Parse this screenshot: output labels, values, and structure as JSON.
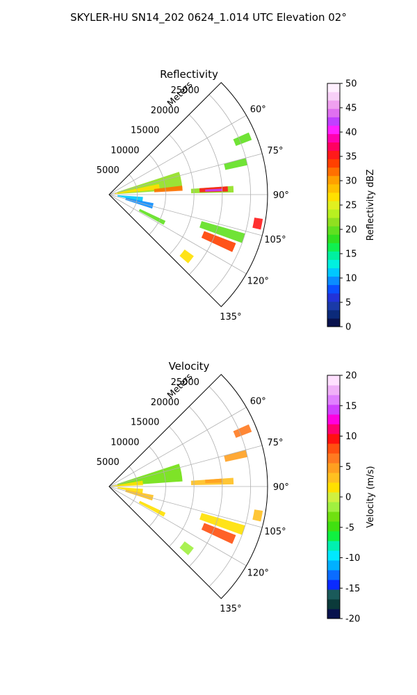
{
  "figure_title": "SKYLER-HU  SN14_202  0624_1.014 UTC Elevation 02°",
  "colors": {
    "grid": "#b0b0b0",
    "axis": "#000000",
    "reflectivity_colormap": [
      "#08124d",
      "#0b2a7a",
      "#1a3aa8",
      "#2233d8",
      "#0a4fff",
      "#0a8cff",
      "#00c8ff",
      "#00f0e0",
      "#00f0a0",
      "#10f050",
      "#30e020",
      "#60e020",
      "#90e020",
      "#b8f020",
      "#e0f020",
      "#ffe000",
      "#ffc000",
      "#ffa000",
      "#ff7000",
      "#ff4000",
      "#ff1a1a",
      "#ff0060",
      "#ff00b0",
      "#ff20ff",
      "#c040ff",
      "#e070f0",
      "#f0a0f0",
      "#f8d0f8",
      "#fff0ff"
    ],
    "velocity_colormap": [
      "#08124d",
      "#0b3a3a",
      "#1a5a5a",
      "#0a2aff",
      "#0a6cff",
      "#00b0ff",
      "#00e8ff",
      "#00f0b0",
      "#10f040",
      "#40e010",
      "#70e010",
      "#a0f040",
      "#d0f040",
      "#ffe000",
      "#ffc020",
      "#ffa020",
      "#ff7a20",
      "#ff5010",
      "#ff1010",
      "#ff0070",
      "#ff00e0",
      "#d040ff",
      "#e080ff",
      "#f0b0f8",
      "#ffe0ff"
    ]
  },
  "chart_data": [
    {
      "type": "ppi_sector",
      "title": "Reflectivity",
      "range_label": "Meters",
      "range_ticks": [
        5000,
        10000,
        15000,
        20000,
        25000
      ],
      "range_tick_labels": [
        "5000",
        "10000",
        "15000",
        "20000",
        "25000"
      ],
      "rmax": 28000,
      "azimuth_range_deg": [
        45,
        135
      ],
      "azimuth_tick_labels": [
        "60°",
        "75°",
        "90°",
        "105°",
        "120°",
        "135°"
      ],
      "azimuth_ticks_deg": [
        60,
        75,
        90,
        105,
        120,
        135
      ],
      "colorbar": {
        "label": "Reflectivity dBZ",
        "min": 0,
        "max": 50,
        "ticks": [
          0,
          5,
          10,
          15,
          20,
          25,
          30,
          35,
          40,
          45,
          50
        ]
      },
      "echoes": [
        {
          "az": [
            72,
            86
          ],
          "r": [
            1500,
            13000
          ],
          "value": 22
        },
        {
          "az": [
            78,
            84
          ],
          "r": [
            1000,
            9000
          ],
          "value": 27
        },
        {
          "az": [
            83,
            87
          ],
          "r": [
            8000,
            13000
          ],
          "value": 32
        },
        {
          "az": [
            86,
            89
          ],
          "r": [
            14500,
            22000
          ],
          "value": 22
        },
        {
          "az": [
            86,
            88.5
          ],
          "r": [
            16000,
            21000
          ],
          "value": 36
        },
        {
          "az": [
            87,
            88.2
          ],
          "r": [
            17000,
            20000
          ],
          "value": 43
        },
        {
          "az": [
            75,
            78
          ],
          "r": [
            21000,
            25000
          ],
          "value": 20
        },
        {
          "az": [
            66,
            69
          ],
          "r": [
            24000,
            27000
          ],
          "value": 20
        },
        {
          "az": [
            94,
            102
          ],
          "r": [
            1500,
            6000
          ],
          "value": 11
        },
        {
          "az": [
            101,
            108
          ],
          "r": [
            3000,
            8000
          ],
          "value": 10
        },
        {
          "az": [
            115,
            119
          ],
          "r": [
            6000,
            11000
          ],
          "value": 20
        },
        {
          "az": [
            106,
            110
          ],
          "r": [
            17000,
            25000
          ],
          "value": 20
        },
        {
          "az": [
            111,
            115
          ],
          "r": [
            18000,
            24000
          ],
          "value": 34
        },
        {
          "az": [
            99,
            103
          ],
          "r": [
            26000,
            27500
          ],
          "value": 35
        },
        {
          "az": [
            126,
            131
          ],
          "r": [
            16500,
            18500
          ],
          "value": 27
        }
      ]
    },
    {
      "type": "ppi_sector",
      "title": "Velocity",
      "range_label": "Meters",
      "range_ticks": [
        5000,
        10000,
        15000,
        20000,
        25000
      ],
      "range_tick_labels": [
        "5000",
        "10000",
        "15000",
        "20000",
        "25000"
      ],
      "rmax": 28000,
      "azimuth_range_deg": [
        45,
        135
      ],
      "azimuth_tick_labels": [
        "60°",
        "75°",
        "90°",
        "105°",
        "120°",
        "135°"
      ],
      "azimuth_ticks_deg": [
        60,
        75,
        90,
        105,
        120,
        135
      ],
      "colorbar": {
        "label": "Velocity (m/s)",
        "min": -20,
        "max": 20,
        "ticks": [
          -20,
          -15,
          -10,
          -5,
          0,
          5,
          10,
          15,
          20
        ]
      },
      "echoes": [
        {
          "az": [
            72,
            86
          ],
          "r": [
            1500,
            13000
          ],
          "value": -3
        },
        {
          "az": [
            80,
            88
          ],
          "r": [
            500,
            6000
          ],
          "value": 1
        },
        {
          "az": [
            86,
            89
          ],
          "r": [
            14500,
            22000
          ],
          "value": 3
        },
        {
          "az": [
            86,
            88
          ],
          "r": [
            17000,
            20000
          ],
          "value": 5
        },
        {
          "az": [
            75,
            78
          ],
          "r": [
            21000,
            25000
          ],
          "value": 4
        },
        {
          "az": [
            66,
            69
          ],
          "r": [
            24000,
            27000
          ],
          "value": 6
        },
        {
          "az": [
            94,
            102
          ],
          "r": [
            1500,
            6000
          ],
          "value": 2
        },
        {
          "az": [
            101,
            108
          ],
          "r": [
            3000,
            8000
          ],
          "value": 3
        },
        {
          "az": [
            115,
            119
          ],
          "r": [
            6000,
            11000
          ],
          "value": 2
        },
        {
          "az": [
            106,
            110
          ],
          "r": [
            17000,
            25000
          ],
          "value": 1
        },
        {
          "az": [
            111,
            115
          ],
          "r": [
            18000,
            24000
          ],
          "value": 8
        },
        {
          "az": [
            99,
            103
          ],
          "r": [
            26000,
            27500
          ],
          "value": 3
        },
        {
          "az": [
            126,
            131
          ],
          "r": [
            16500,
            18500
          ],
          "value": -2
        }
      ]
    }
  ]
}
